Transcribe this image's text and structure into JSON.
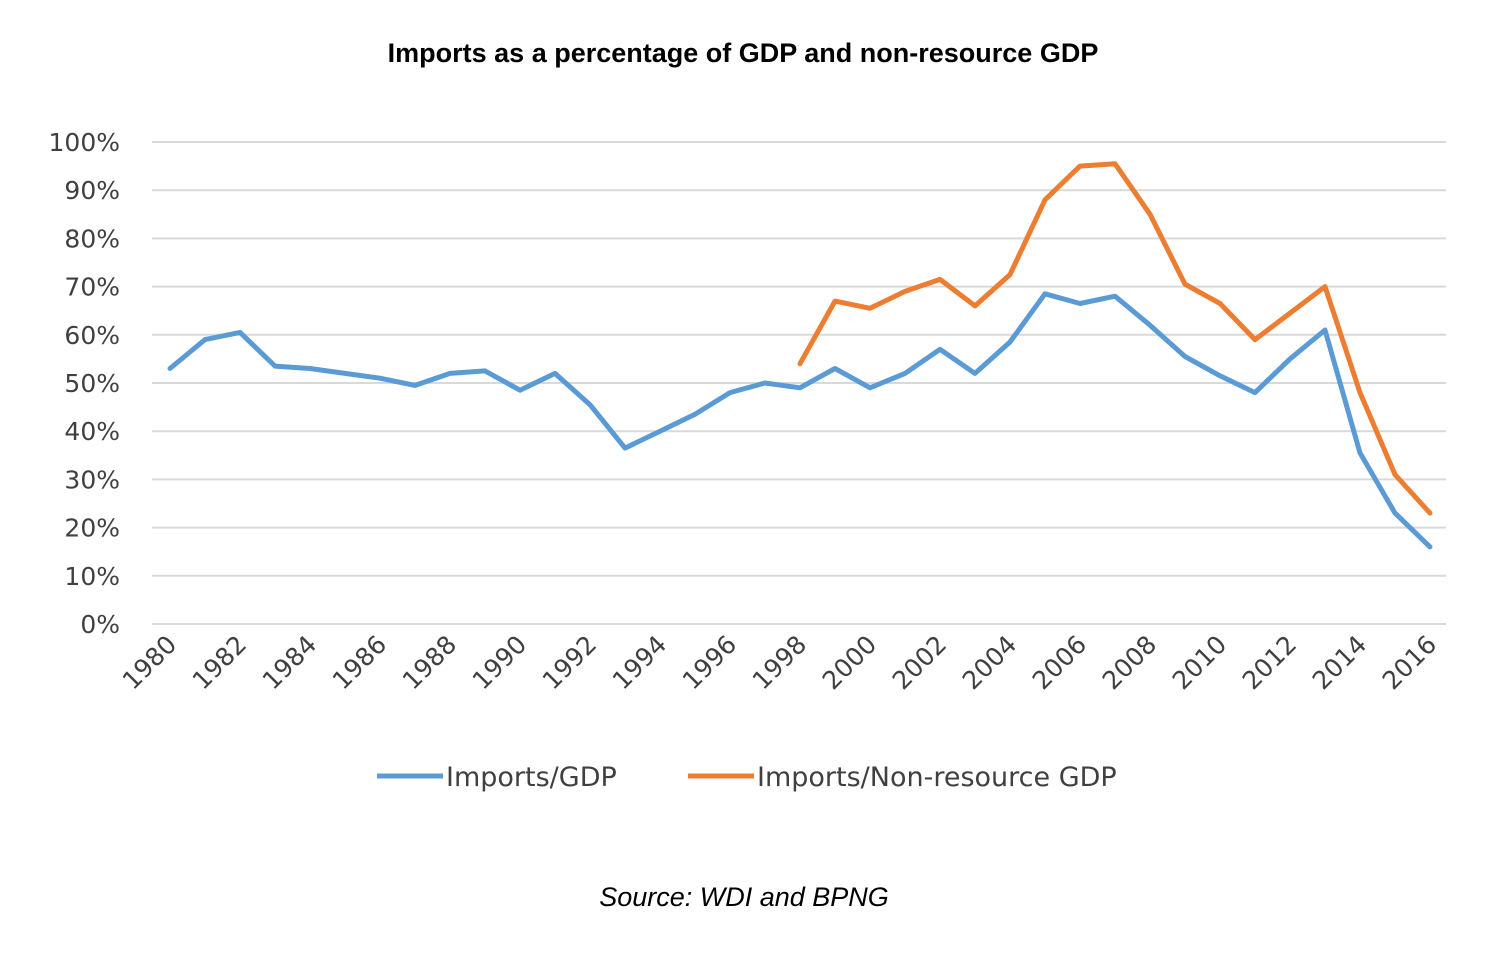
{
  "title": "Imports as a percentage of GDP and non-resource GDP",
  "source": "Source: WDI and BPNG",
  "chart_data": {
    "type": "line",
    "title": "Imports as a percentage of GDP and non-resource GDP",
    "xlabel": "",
    "ylabel": "",
    "ylim": [
      0,
      100
    ],
    "y_ticks": [
      "0%",
      "10%",
      "20%",
      "30%",
      "40%",
      "50%",
      "60%",
      "70%",
      "80%",
      "90%",
      "100%"
    ],
    "x_ticks": [
      "1980",
      "1982",
      "1984",
      "1986",
      "1988",
      "1990",
      "1992",
      "1994",
      "1996",
      "1998",
      "2000",
      "2002",
      "2004",
      "2006",
      "2008",
      "2010",
      "2012",
      "2014",
      "2016"
    ],
    "grid": "horizontal",
    "legend_position": "bottom",
    "series": [
      {
        "name": "Imports/GDP",
        "color": "#5b9bd5",
        "x": [
          1980,
          1981,
          1982,
          1983,
          1984,
          1985,
          1986,
          1987,
          1988,
          1989,
          1990,
          1991,
          1992,
          1993,
          1994,
          1995,
          1996,
          1997,
          1998,
          1999,
          2000,
          2001,
          2002,
          2003,
          2004,
          2005,
          2006,
          2007,
          2008,
          2009,
          2010,
          2011,
          2012,
          2013,
          2014,
          2015,
          2016
        ],
        "values": [
          53,
          59,
          60.5,
          53.5,
          53,
          52,
          51,
          49.5,
          52,
          52.5,
          48.5,
          52,
          45.5,
          36.5,
          40,
          43.5,
          48,
          50,
          49,
          53,
          49,
          52,
          57,
          52,
          58.5,
          68.5,
          66.5,
          68,
          62,
          55.5,
          51.5,
          48,
          55,
          61,
          35.5,
          23,
          16
        ]
      },
      {
        "name": "Imports/Non-resource GDP",
        "color": "#ed7d31",
        "x": [
          1998,
          1999,
          2000,
          2001,
          2002,
          2003,
          2004,
          2005,
          2006,
          2007,
          2008,
          2009,
          2010,
          2011,
          2012,
          2013,
          2014,
          2015,
          2016
        ],
        "values": [
          54,
          67,
          65.5,
          69,
          71.5,
          66,
          72.5,
          88,
          95,
          95.5,
          85,
          70.5,
          66.5,
          59,
          64.5,
          70,
          48,
          31,
          23
        ]
      }
    ]
  }
}
